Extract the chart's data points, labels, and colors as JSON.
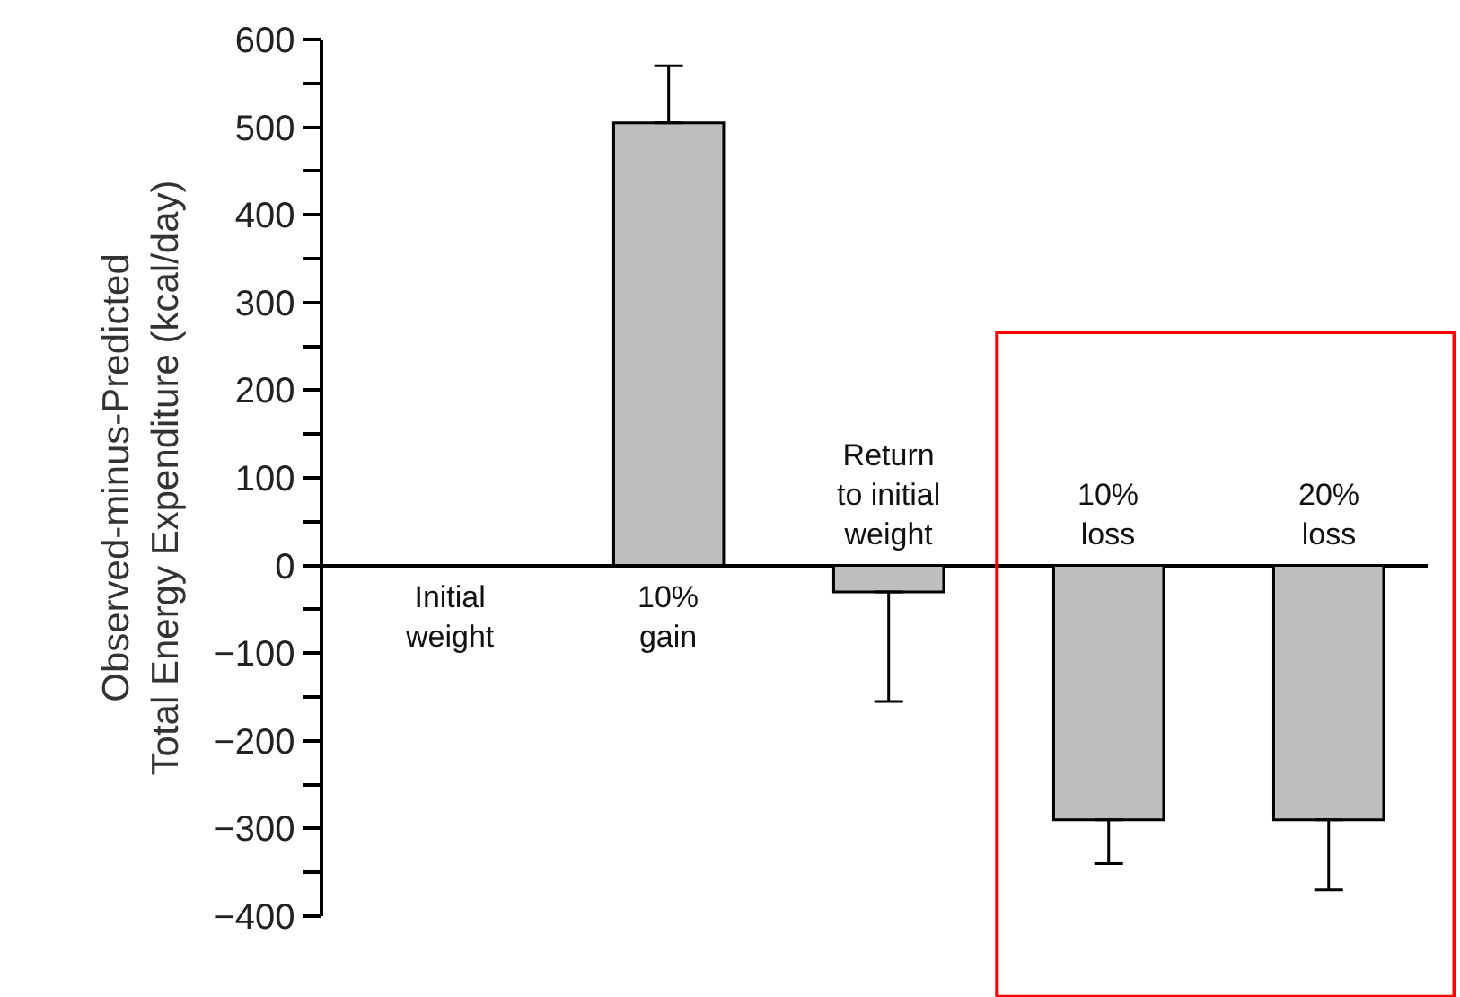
{
  "chart_data": {
    "type": "bar",
    "ylabel": "Observed-minus-Predicted\nTotal Energy Expenditure (kcal/day)",
    "categories": [
      "Initial\nweight",
      "10%\ngain",
      "Return\nto initial\nweight",
      "10%\nloss",
      "20%\nloss"
    ],
    "values": [
      0,
      505,
      -30,
      -290,
      -290
    ],
    "errors": [
      null,
      [
        505,
        570
      ],
      [
        -155,
        -30
      ],
      [
        -340,
        -290
      ],
      [
        -370,
        -290
      ]
    ],
    "color": "#bebebe",
    "ylim": [
      -400,
      600
    ],
    "yticks": [
      -400,
      {
        "value": -350,
        "label": null
      },
      -300,
      {
        "value": -250,
        "label": null
      },
      -200,
      {
        "value": -150,
        "label": null
      },
      -100,
      {
        "value": -50,
        "label": null
      },
      0,
      {
        "value": 50,
        "label": null
      },
      100,
      {
        "value": 150,
        "label": null
      },
      200,
      {
        "value": 250,
        "label": null
      },
      300,
      {
        "value": 350,
        "label": null
      },
      400,
      {
        "value": 450,
        "label": null
      },
      500,
      {
        "value": 550,
        "label": null
      },
      600
    ],
    "tick_labels": "y"
  }
}
